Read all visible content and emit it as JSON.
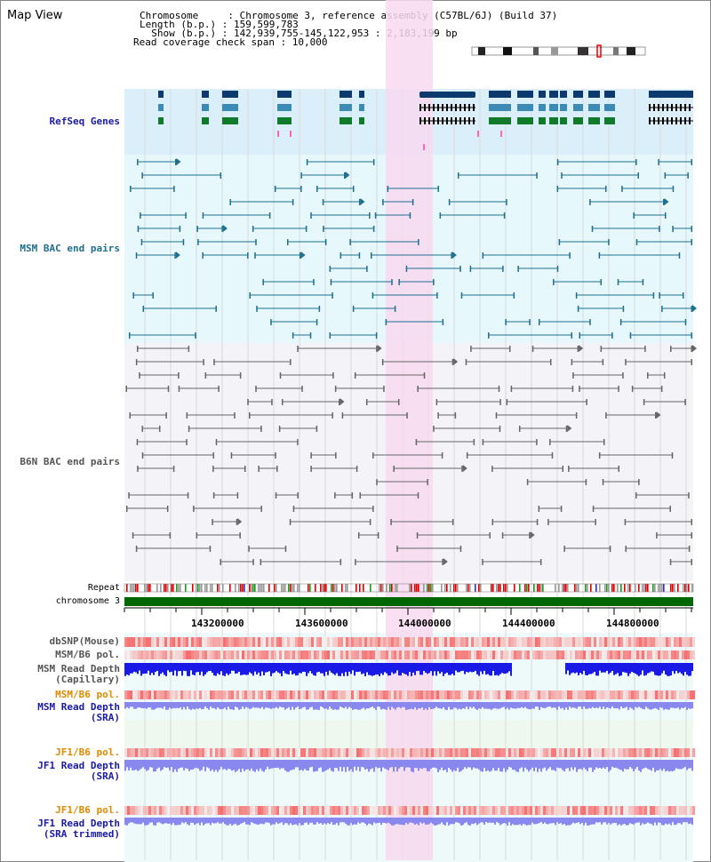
{
  "app": {
    "title": "Map View"
  },
  "info": {
    "line1": "Chromosome     : Chromosome 3, reference assembly (C57BL/6J) (Build 37)",
    "line2": "Length (b.p.) : 159,599,783",
    "line3": "  Show (b.p.) : 142,939,755-145,122,953 : 2,183,199 bp",
    "line4": "Read coverage check span : 10,000"
  },
  "tracks": {
    "refseq": "RefSeq Genes",
    "msm_bac": "MSM BAC end pairs",
    "b6n_bac": "B6N BAC end pairs",
    "repeat": "Repeat",
    "chromosome": "chromosome 3",
    "dbsnp": "dbSNP(Mouse)",
    "msm_b6_pol_1": "MSM/B6 pol.",
    "msm_depth_cap_1": "MSM Read Depth",
    "msm_depth_cap_2": "(Capillary)",
    "msm_b6_pol_2": "MSM/B6 pol.",
    "msm_depth_sra_1": "MSM Read Depth",
    "msm_depth_sra_2": "(SRA)",
    "jf1_b6_pol_1": "JF1/B6 pol.",
    "jf1_depth_sra_1": "JF1 Read Depth",
    "jf1_depth_sra_2": "(SRA)",
    "jf1_b6_pol_2": "JF1/B6 pol.",
    "jf1_depth_trim_1": "JF1 Read Depth",
    "jf1_depth_trim_2": "(SRA trimmed)"
  },
  "axis": {
    "ticks": [
      "143200000",
      "143600000",
      "144000000",
      "144400000",
      "144800000"
    ]
  },
  "colors": {
    "refseq_bg": "#dbeffa",
    "msm_bg": "#e6f8fb",
    "b6n_bg": "#f4f4f8",
    "highlight": "#f7d9f0",
    "chromosome": "#006600",
    "msm_pair": "#1f6f8f",
    "b6n_pair": "#666666",
    "depth_dark": "#1a1ae6",
    "depth_light": "#8888ee"
  }
}
